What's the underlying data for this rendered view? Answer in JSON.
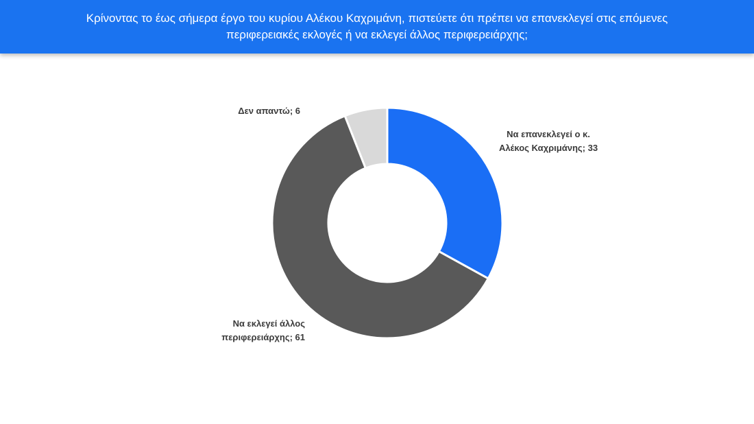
{
  "header": {
    "title": "Κρίνοντας το έως σήμερα έργο του κυρίου Αλέκου Καχριμάνη, πιστεύετε ότι πρέπει να επανεκλεγεί στις επόμενες\nπεριφερειακές εκλογές ή να εκλεγεί άλλος περιφερειάρχης;"
  },
  "chart_data": {
    "type": "pie",
    "title": "Κρίνοντας το έως σήμερα έργο του κυρίου Αλέκου Καχριμάνη, πιστεύετε ότι πρέπει να επανεκλεγεί στις επόμενες περιφερειακές εκλογές ή να εκλεγεί άλλος περιφερειάρχης;",
    "donut": true,
    "slices": [
      {
        "label": "Να επανεκλεγεί ο κ.\nΑλέκος Καχριμάνης; 33",
        "category": "Να επανεκλεγεί ο κ. Αλέκος Καχριμάνης",
        "value": 33,
        "color": "#1a6ef5"
      },
      {
        "label": "Να εκλεγεί άλλος\nπεριφερειάρχης; 61",
        "category": "Να εκλεγεί άλλος περιφερειάρχης",
        "value": 61,
        "color": "#595959"
      },
      {
        "label": "Δεν απαντώ; 6",
        "category": "Δεν απαντώ",
        "value": 6,
        "color": "#d9d9d9"
      }
    ]
  }
}
